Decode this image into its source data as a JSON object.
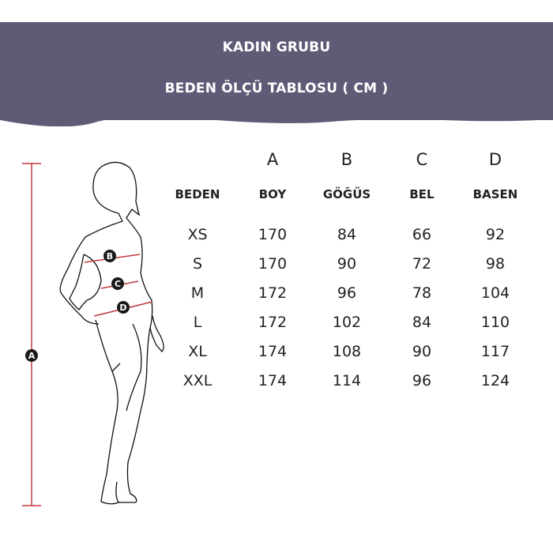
{
  "header": {
    "line1": "KADIN GRUBU",
    "line2": "BEDEN ÖLÇÜ TABLOSU ( CM )",
    "background": "#615a77"
  },
  "diagram": {
    "labels": [
      "A",
      "B",
      "C",
      "D"
    ],
    "measure_color": "#c0393b"
  },
  "table": {
    "letters": [
      "",
      "A",
      "B",
      "C",
      "D"
    ],
    "columns": [
      "BEDEN",
      "BOY",
      "GÖĞÜS",
      "BEL",
      "BASEN"
    ],
    "rows": [
      [
        "XS",
        "170",
        "84",
        "66",
        "92"
      ],
      [
        "S",
        "170",
        "90",
        "72",
        "98"
      ],
      [
        "M",
        "172",
        "96",
        "78",
        "104"
      ],
      [
        "L",
        "172",
        "102",
        "84",
        "110"
      ],
      [
        "XL",
        "174",
        "108",
        "90",
        "117"
      ],
      [
        "XXL",
        "174",
        "114",
        "96",
        "124"
      ]
    ]
  }
}
